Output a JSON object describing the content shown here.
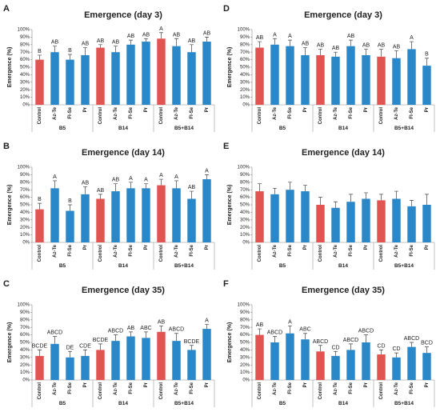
{
  "chart_data": [
    {
      "type": "bar",
      "panel": "A",
      "title": "Emergence (day 3)",
      "ylabel": "Emergence (%)",
      "categories": [
        "Control",
        "Az-Te",
        "Fl-Se",
        "Pr",
        "Control",
        "Az-Te",
        "Fl-Se",
        "Pr",
        "Control",
        "Az-Te",
        "Fl-Se",
        "Pr"
      ],
      "groups": [
        "B5",
        "B14",
        "B5+B14"
      ],
      "values": [
        60,
        70,
        60,
        66,
        76,
        70,
        80,
        84,
        88,
        78,
        70,
        84
      ],
      "errors": [
        6,
        8,
        7,
        10,
        4,
        8,
        6,
        4,
        8,
        10,
        10,
        6
      ],
      "annotations": [
        "B",
        "AB",
        "B",
        "AB",
        "AB",
        "AB",
        "AB",
        "AB",
        "A",
        "AB",
        "AB",
        "AB"
      ],
      "colors": [
        "#e05552",
        "#2a88c8",
        "#2a88c8",
        "#2a88c8",
        "#e05552",
        "#2a88c8",
        "#2a88c8",
        "#2a88c8",
        "#e05552",
        "#2a88c8",
        "#2a88c8",
        "#2a88c8"
      ],
      "ylim": [
        0,
        100
      ],
      "yticks": [
        {
          "value": 0,
          "label": "0%"
        },
        {
          "value": 10,
          "label": "10%"
        },
        {
          "value": 20,
          "label": "20%"
        },
        {
          "value": 30,
          "label": "30%"
        },
        {
          "value": 40,
          "label": "40%"
        },
        {
          "value": 50,
          "label": "50%"
        },
        {
          "value": 60,
          "label": "60%"
        },
        {
          "value": 70,
          "label": "70%"
        },
        {
          "value": 80,
          "label": "80%"
        },
        {
          "value": 90,
          "label": "90%"
        },
        {
          "value": 100,
          "label": "100%"
        }
      ]
    },
    {
      "type": "bar",
      "panel": "B",
      "title": "Emergence (day 14)",
      "ylabel": "Emergence (%)",
      "categories": [
        "Control",
        "Az-Te",
        "Fl-Se",
        "Pr",
        "Control",
        "Az-Te",
        "Fl-Se",
        "Pr",
        "Control",
        "Az-Te",
        "Fl-Se",
        "Pr"
      ],
      "groups": [
        "B5",
        "B14",
        "B5+B14"
      ],
      "values": [
        44,
        72,
        42,
        64,
        58,
        68,
        72,
        72,
        76,
        72,
        58,
        84
      ],
      "errors": [
        8,
        10,
        8,
        10,
        6,
        10,
        8,
        6,
        8,
        10,
        10,
        6
      ],
      "annotations": [
        "B",
        "A",
        "B",
        "AB",
        "AB",
        "AB",
        "A",
        "A",
        "A",
        "A",
        "AB",
        "A"
      ],
      "colors": [
        "#e05552",
        "#2a88c8",
        "#2a88c8",
        "#2a88c8",
        "#e05552",
        "#2a88c8",
        "#2a88c8",
        "#2a88c8",
        "#e05552",
        "#2a88c8",
        "#2a88c8",
        "#2a88c8"
      ],
      "ylim": [
        0,
        100
      ],
      "yticks": [
        {
          "value": 0,
          "label": "0%"
        },
        {
          "value": 10,
          "label": "10%"
        },
        {
          "value": 20,
          "label": "20%"
        },
        {
          "value": 30,
          "label": "30%"
        },
        {
          "value": 40,
          "label": "40%"
        },
        {
          "value": 50,
          "label": "50%"
        },
        {
          "value": 60,
          "label": "60%"
        },
        {
          "value": 70,
          "label": "70%"
        },
        {
          "value": 80,
          "label": "80%"
        },
        {
          "value": 90,
          "label": "90%"
        },
        {
          "value": 100,
          "label": "100%"
        }
      ]
    },
    {
      "type": "bar",
      "panel": "C",
      "title": "Emergence (day 35)",
      "ylabel": "Emergence (%)",
      "categories": [
        "Control",
        "Az-Te",
        "Fl-Se",
        "Pr",
        "Control",
        "Az-Te",
        "Fl-Se",
        "Pr",
        "Control",
        "Az-Te",
        "Fl-Se",
        "Pr"
      ],
      "groups": [
        "B5",
        "B14",
        "B5+B14"
      ],
      "values": [
        32,
        48,
        30,
        32,
        40,
        52,
        58,
        56,
        64,
        52,
        40,
        68
      ],
      "errors": [
        8,
        10,
        8,
        8,
        8,
        8,
        6,
        8,
        8,
        10,
        6,
        6
      ],
      "annotations": [
        "BCDE",
        "ABCD",
        "DE",
        "CDE",
        "BCDE",
        "ABCD",
        "AB",
        "ABC",
        "AB",
        "ABCD",
        "BCDE",
        "A"
      ],
      "colors": [
        "#e05552",
        "#2a88c8",
        "#2a88c8",
        "#2a88c8",
        "#e05552",
        "#2a88c8",
        "#2a88c8",
        "#2a88c8",
        "#e05552",
        "#2a88c8",
        "#2a88c8",
        "#2a88c8"
      ],
      "ylim": [
        0,
        100
      ],
      "yticks": [
        {
          "value": 0,
          "label": "0%"
        },
        {
          "value": 10,
          "label": "10%"
        },
        {
          "value": 20,
          "label": "20%"
        },
        {
          "value": 30,
          "label": "30%"
        },
        {
          "value": 40,
          "label": "40%"
        },
        {
          "value": 50,
          "label": "50%"
        },
        {
          "value": 60,
          "label": "60%"
        },
        {
          "value": 70,
          "label": "70%"
        },
        {
          "value": 80,
          "label": "80%"
        },
        {
          "value": 90,
          "label": "90%"
        },
        {
          "value": 100,
          "label": "100%"
        }
      ]
    },
    {
      "type": "bar",
      "panel": "D",
      "title": "Emergence (day 3)",
      "ylabel": "Emergence (%)",
      "categories": [
        "Control",
        "Az-Te",
        "Fl-Se",
        "Pr",
        "Control",
        "Az-Te",
        "Fl-Se",
        "Pr",
        "Control",
        "Az-Te",
        "Fl-Se",
        "Pr"
      ],
      "groups": [
        "B5",
        "B14",
        "B5+B14"
      ],
      "values": [
        76,
        80,
        78,
        66,
        66,
        64,
        78,
        66,
        64,
        62,
        74,
        52
      ],
      "errors": [
        8,
        8,
        8,
        10,
        8,
        6,
        8,
        8,
        10,
        10,
        10,
        10
      ],
      "annotations": [
        "AB",
        "A",
        "A",
        "AB",
        "AB",
        "AB",
        "AB",
        "AB",
        "AB",
        "AB",
        "A",
        "B"
      ],
      "colors": [
        "#e05552",
        "#2a88c8",
        "#2a88c8",
        "#2a88c8",
        "#e05552",
        "#2a88c8",
        "#2a88c8",
        "#2a88c8",
        "#e05552",
        "#2a88c8",
        "#2a88c8",
        "#2a88c8"
      ],
      "ylim": [
        0,
        100
      ],
      "yticks": [
        {
          "value": 0,
          "label": "0%"
        },
        {
          "value": 10,
          "label": "10%"
        },
        {
          "value": 20,
          "label": "20%"
        },
        {
          "value": 30,
          "label": "30%"
        },
        {
          "value": 40,
          "label": "40%"
        },
        {
          "value": 50,
          "label": "50%"
        },
        {
          "value": 60,
          "label": "60%"
        },
        {
          "value": 70,
          "label": "70%"
        },
        {
          "value": 80,
          "label": "80%"
        },
        {
          "value": 90,
          "label": "90%"
        },
        {
          "value": 100,
          "label": "100%"
        }
      ]
    },
    {
      "type": "bar",
      "panel": "E",
      "title": "Emergence (day 14)",
      "ylabel": "Emergence (%)",
      "categories": [
        "Control",
        "Az-Te",
        "Fl-Se",
        "Pr",
        "Control",
        "Az-Te",
        "Fl-Se",
        "Pr",
        "Control",
        "Az-Te",
        "Fl-Se",
        "Pr"
      ],
      "groups": [
        "B5",
        "B14",
        "B5+B14"
      ],
      "values": [
        68,
        64,
        70,
        68,
        50,
        46,
        54,
        58,
        56,
        58,
        48,
        50
      ],
      "errors": [
        10,
        8,
        10,
        8,
        10,
        8,
        10,
        8,
        8,
        10,
        8,
        14
      ],
      "colors": [
        "#e05552",
        "#2a88c8",
        "#2a88c8",
        "#2a88c8",
        "#e05552",
        "#2a88c8",
        "#2a88c8",
        "#2a88c8",
        "#e05552",
        "#2a88c8",
        "#2a88c8",
        "#2a88c8"
      ],
      "ylim": [
        0,
        100
      ],
      "yticks": [
        {
          "value": 0,
          "label": "0%"
        },
        {
          "value": 10,
          "label": "10%"
        },
        {
          "value": 20,
          "label": "20%"
        },
        {
          "value": 30,
          "label": "30%"
        },
        {
          "value": 40,
          "label": "40%"
        },
        {
          "value": 50,
          "label": "50%"
        },
        {
          "value": 60,
          "label": "60%"
        },
        {
          "value": 70,
          "label": "70%"
        },
        {
          "value": 80,
          "label": "80%"
        },
        {
          "value": 90,
          "label": "90%"
        },
        {
          "value": 100,
          "label": "100%"
        }
      ]
    },
    {
      "type": "bar",
      "panel": "F",
      "title": "Emergence (day 35)",
      "ylabel": "Emergence (%)",
      "categories": [
        "Control",
        "Az-Te",
        "Fl-Se",
        "Pr",
        "Control",
        "Az-Te",
        "Fl-Se",
        "Pr",
        "Control",
        "Az-Te",
        "Fl-Se",
        "Pr"
      ],
      "groups": [
        "B5",
        "B14",
        "B5+B14"
      ],
      "values": [
        60,
        50,
        62,
        54,
        38,
        32,
        40,
        50,
        34,
        30,
        44,
        36
      ],
      "errors": [
        8,
        8,
        10,
        8,
        8,
        6,
        8,
        10,
        6,
        6,
        6,
        8
      ],
      "annotations": [
        "AB",
        "ABCD",
        "A",
        "ABC",
        "ABCD",
        "CD",
        "ABCD",
        "ABCD",
        "CD",
        "CD",
        "ABCD",
        "BCD"
      ],
      "colors": [
        "#e05552",
        "#2a88c8",
        "#2a88c8",
        "#2a88c8",
        "#e05552",
        "#2a88c8",
        "#2a88c8",
        "#2a88c8",
        "#e05552",
        "#2a88c8",
        "#2a88c8",
        "#2a88c8"
      ],
      "ylim": [
        0,
        100
      ],
      "yticks": [
        {
          "value": 0,
          "label": "0%"
        },
        {
          "value": 10,
          "label": "10%"
        },
        {
          "value": 20,
          "label": "20%"
        },
        {
          "value": 30,
          "label": "30%"
        },
        {
          "value": 40,
          "label": "40%"
        },
        {
          "value": 50,
          "label": "50%"
        },
        {
          "value": 60,
          "label": "60%"
        },
        {
          "value": 70,
          "label": "70%"
        },
        {
          "value": 80,
          "label": "80%"
        },
        {
          "value": 90,
          "label": "90%"
        },
        {
          "value": 100,
          "label": "100%"
        }
      ]
    }
  ]
}
